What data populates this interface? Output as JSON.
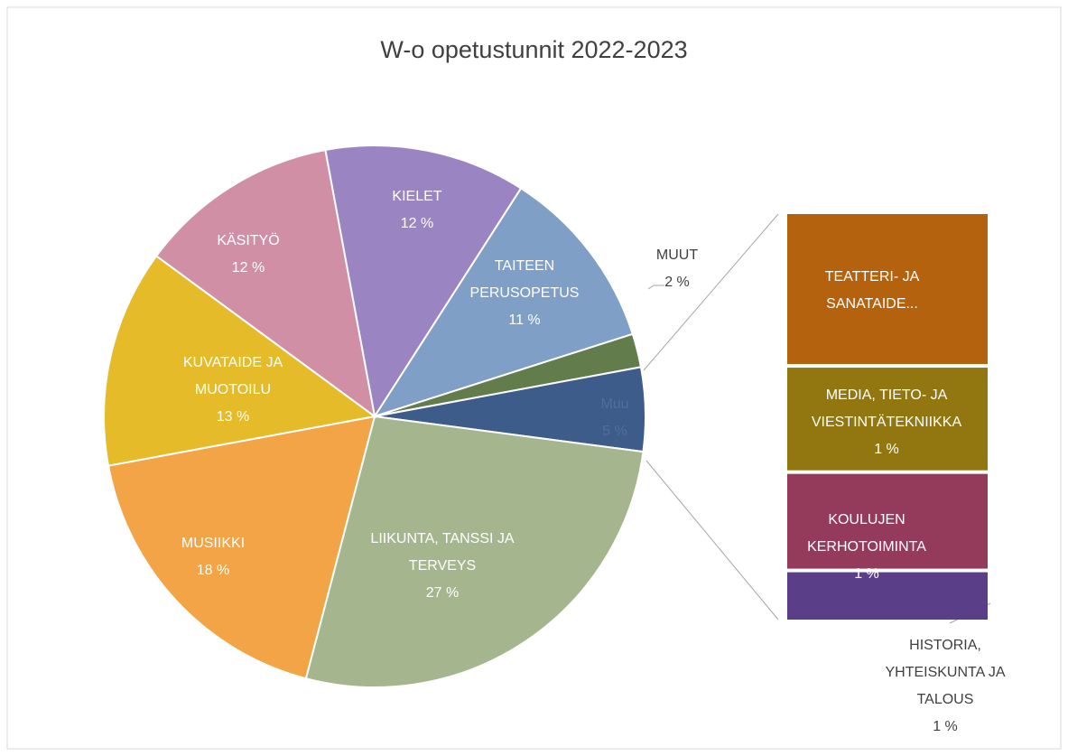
{
  "chart_data": {
    "type": "bar-of-pie",
    "title": "W-o opetustunnit  2022-2023",
    "categories": [
      "KIELET",
      "TAITEEN PERUSOPETUS",
      "MUUT",
      "Muu",
      "LIIKUNTA, TANSSI JA TERVEYS",
      "MUSIIKKI",
      "KUVATAIDE JA MUOTOILU",
      "KÄSITYÖ"
    ],
    "values": [
      12,
      11,
      2,
      5,
      27,
      18,
      13,
      12
    ],
    "value_labels": [
      "12 %",
      "11 %",
      "2 %",
      "5 %",
      "27 %",
      "18 %",
      "13 %",
      "12 %"
    ],
    "colors": [
      "#9b84c2",
      "#7f9fc6",
      "#637c4b",
      "#3d5c89",
      "#a5b68f",
      "#f2a446",
      "#e5bb2a",
      "#d08fa4"
    ],
    "bar": {
      "categories": [
        "TEATTERI- JA SANATAIDE...",
        "MEDIA, TIETO- JA VIESTINTÄTEKNIIKKA",
        "KOULUJEN KERHOTOIMINTA",
        "HISTORIA, YHTEISKUNTA JA TALOUS"
      ],
      "values": [
        1.9,
        1.3,
        1.2,
        0.6
      ],
      "value_labels": [
        null,
        "1 %",
        "1 %",
        "1 %"
      ],
      "colors": [
        "#b5620e",
        "#92760f",
        "#943a5a",
        "#5a3f88"
      ]
    }
  }
}
